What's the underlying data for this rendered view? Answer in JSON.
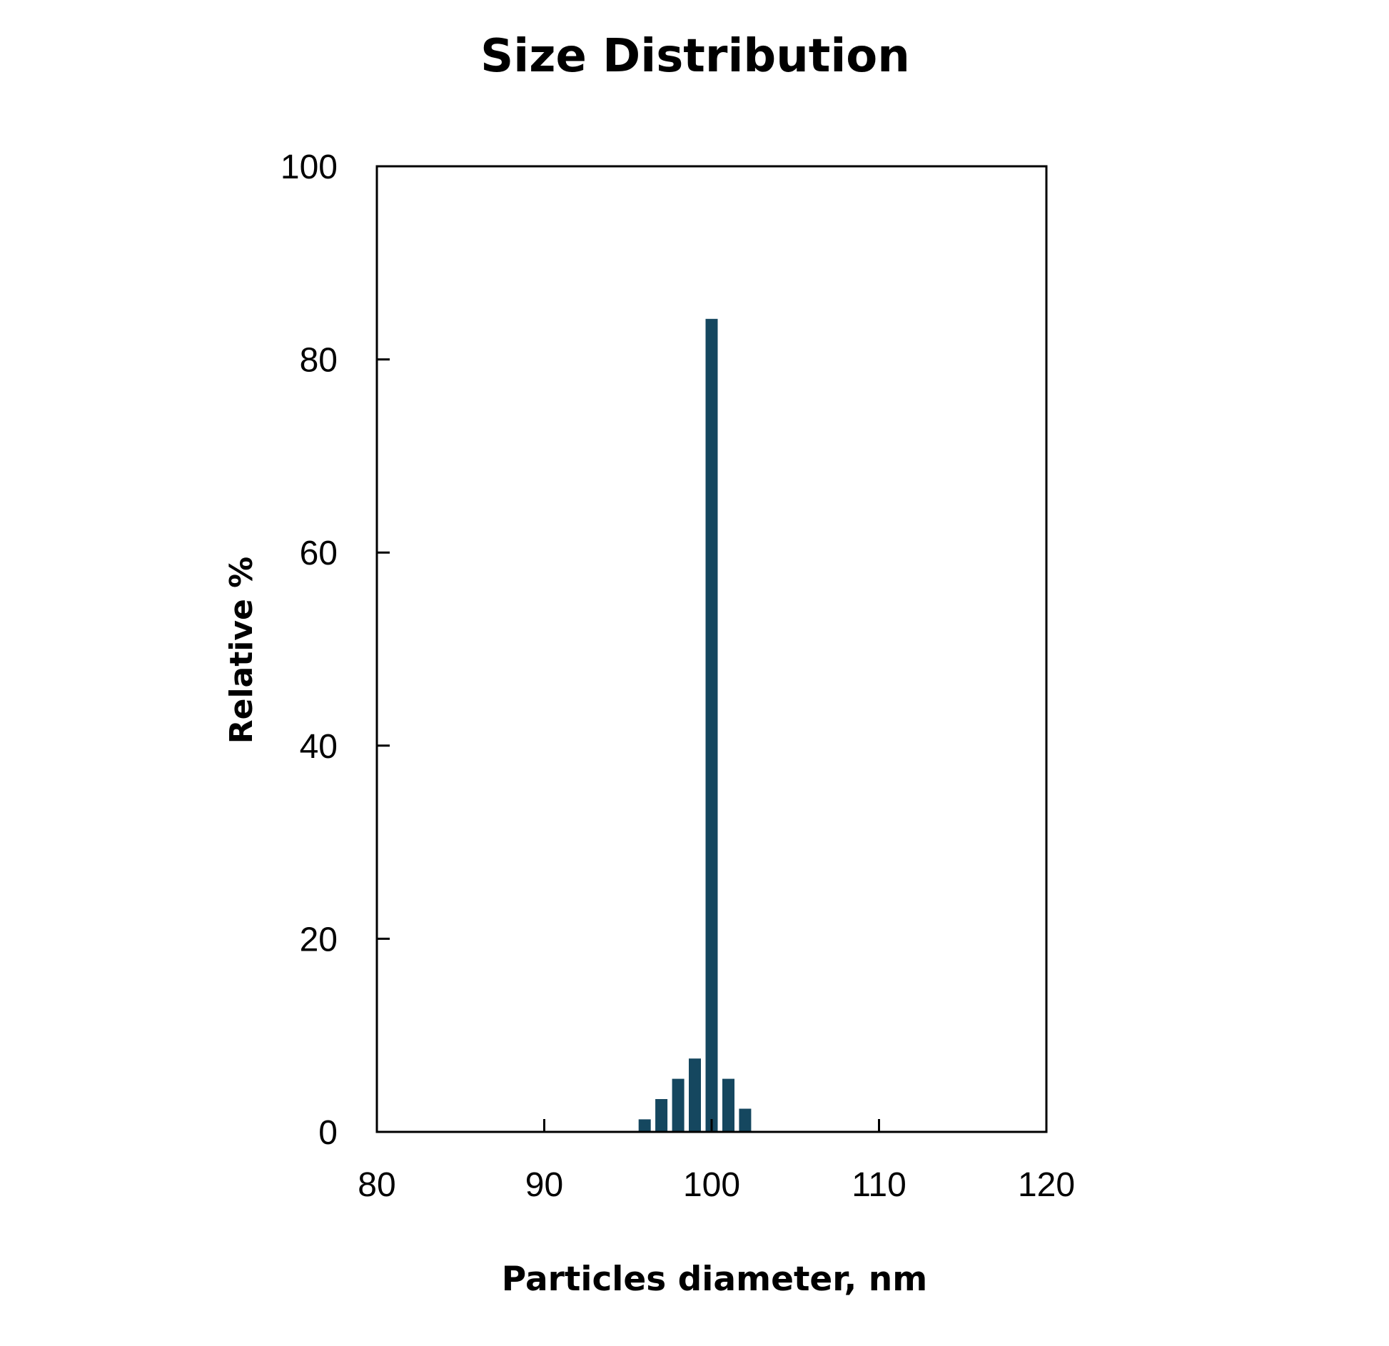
{
  "chart_data": {
    "type": "bar",
    "title": "Size Distribution",
    "xlabel": "Particles diameter, nm",
    "ylabel": "Relative %",
    "xlim": [
      80,
      120
    ],
    "ylim": [
      0,
      100
    ],
    "xticks": [
      80,
      90,
      100,
      110,
      120
    ],
    "yticks": [
      0,
      20,
      40,
      60,
      80,
      100
    ],
    "grid": false,
    "legend": null,
    "bar_color": "#15475f",
    "categories": [
      96,
      97,
      98,
      99,
      100,
      101,
      102
    ],
    "values": [
      1.3,
      3.4,
      5.5,
      7.6,
      84.2,
      5.5,
      2.4
    ],
    "series": [
      {
        "name": "Relative %",
        "x": [
          96,
          97,
          98,
          99,
          100,
          101,
          102
        ],
        "values": [
          1.3,
          3.4,
          5.5,
          7.6,
          84.2,
          5.5,
          2.4
        ]
      }
    ]
  }
}
